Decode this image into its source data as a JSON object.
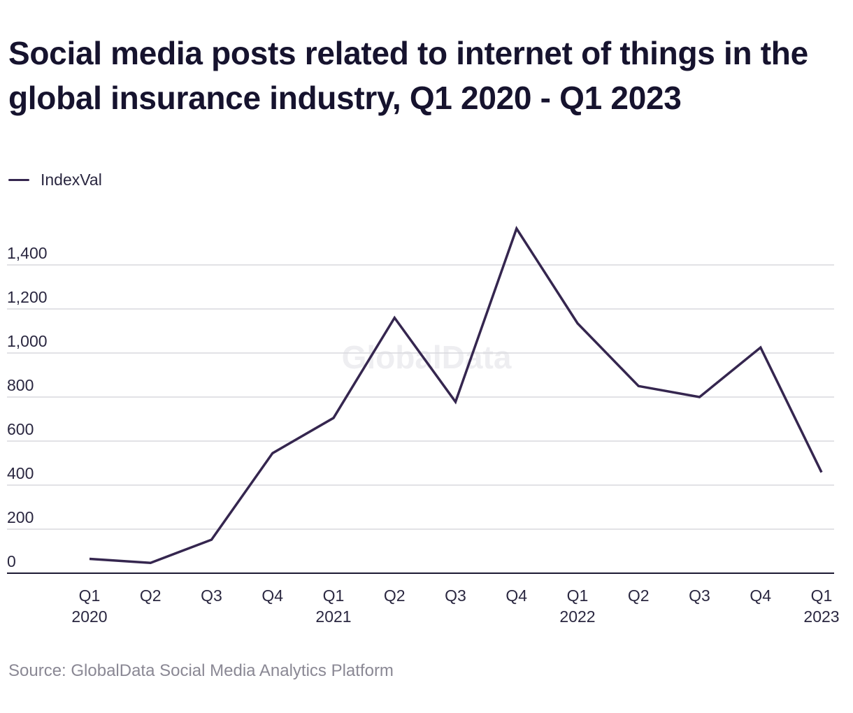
{
  "chart_data": {
    "type": "line",
    "title": "Social media posts related to internet of things in the global insurance industry, Q1 2020 - Q1 2023",
    "watermark": "GlobalData",
    "source": "Source: GlobalData Social Media Analytics Platform",
    "legend_position": "top-left",
    "grid": true,
    "x_labels": [
      {
        "quarter": "Q1",
        "year": "2020"
      },
      {
        "quarter": "Q2",
        "year": ""
      },
      {
        "quarter": "Q3",
        "year": ""
      },
      {
        "quarter": "Q4",
        "year": ""
      },
      {
        "quarter": "Q1",
        "year": "2021"
      },
      {
        "quarter": "Q2",
        "year": ""
      },
      {
        "quarter": "Q3",
        "year": ""
      },
      {
        "quarter": "Q4",
        "year": ""
      },
      {
        "quarter": "Q1",
        "year": "2022"
      },
      {
        "quarter": "Q2",
        "year": ""
      },
      {
        "quarter": "Q3",
        "year": ""
      },
      {
        "quarter": "Q4",
        "year": ""
      },
      {
        "quarter": "Q1",
        "year": "2023"
      }
    ],
    "y_ticks": [
      0,
      200,
      400,
      600,
      800,
      1000,
      1200,
      1400
    ],
    "y_tick_labels": [
      "0",
      "200",
      "400",
      "600",
      "800",
      "1,000",
      "1,200",
      "1,400"
    ],
    "ylim": [
      0,
      1400
    ],
    "series": [
      {
        "name": "IndexVal",
        "color": "#35264f",
        "values": [
          65,
          47,
          152,
          545,
          705,
          1160,
          778,
          1565,
          1135,
          850,
          800,
          1025,
          458
        ]
      }
    ]
  }
}
